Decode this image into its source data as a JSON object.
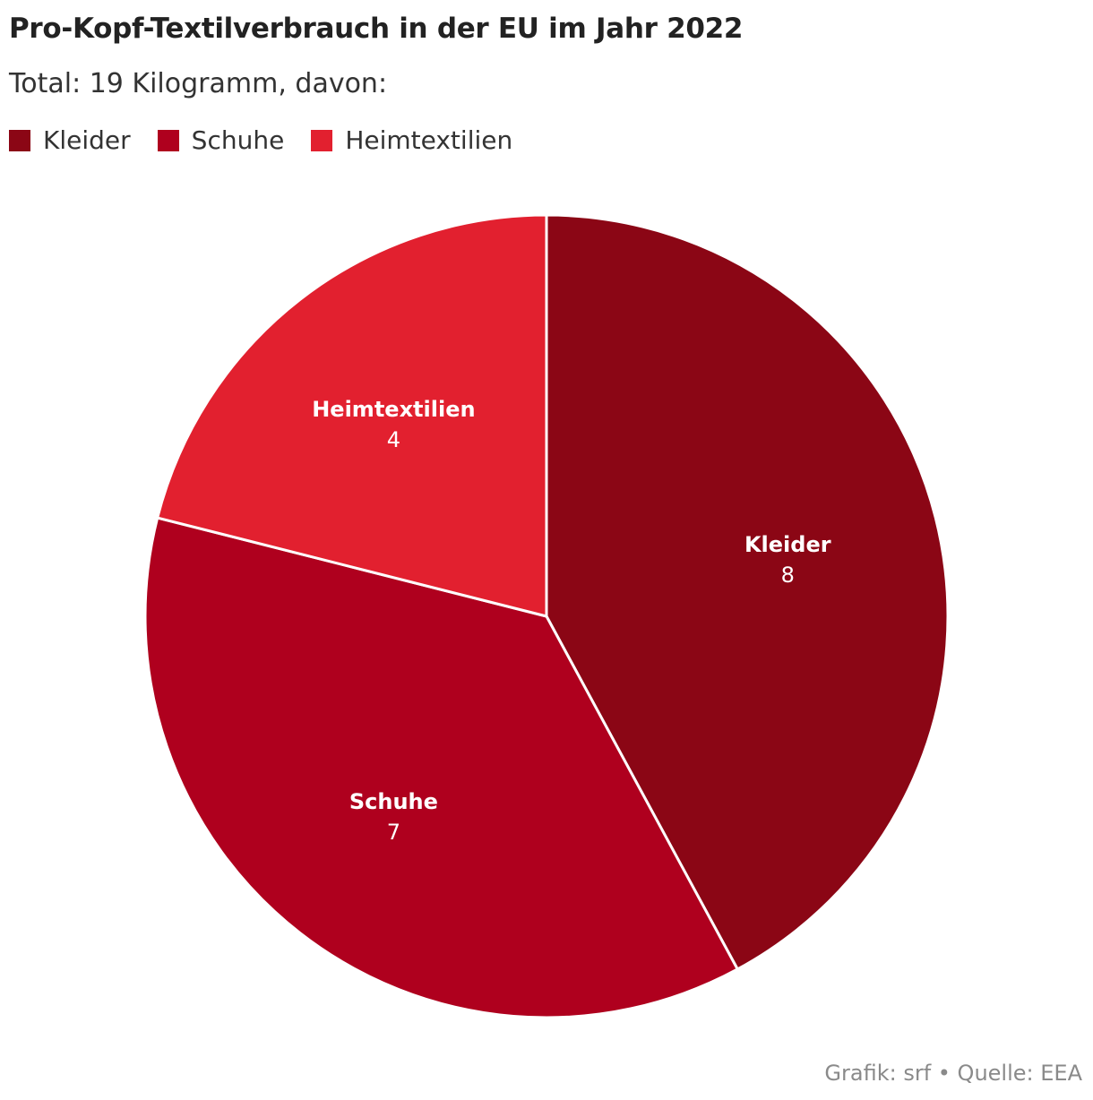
{
  "title": "Pro-Kopf-Textilverbrauch in der EU im Jahr 2022",
  "subtitle": "Total: 19 Kilogramm, davon:",
  "source": "Grafik: srf • Quelle: EEA",
  "chart_data": {
    "type": "pie",
    "title": "Pro-Kopf-Textilverbrauch in der EU im Jahr 2022",
    "subtitle": "Total: 19 Kilogramm, davon:",
    "categories": [
      "Kleider",
      "Schuhe",
      "Heimtextilien"
    ],
    "values": [
      8,
      7,
      4
    ],
    "value_labels": [
      "8",
      "7",
      "4"
    ],
    "colors": [
      "#8b0615",
      "#af001e",
      "#e2202f"
    ],
    "legend": "top-left",
    "start": "12 o'clock",
    "direction": "clockwise"
  }
}
